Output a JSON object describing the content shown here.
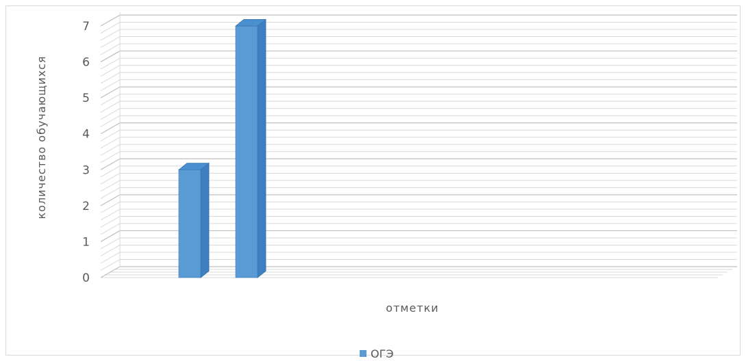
{
  "chart_data": {
    "type": "bar",
    "style": "3d-column",
    "categories": [
      "",
      ""
    ],
    "series": [
      {
        "name": "ОГЭ",
        "values": [
          3,
          7
        ],
        "color": "#5b9bd5"
      }
    ],
    "xlabel": "отметки",
    "ylabel": "количество обучающихся",
    "ylim": [
      0,
      7
    ],
    "yticks": [
      "0",
      "1",
      "2",
      "3",
      "4",
      "5",
      "6",
      "7"
    ],
    "grid": "minor horizontal gridlines on back wall and floor",
    "legend": "bottom-center"
  }
}
